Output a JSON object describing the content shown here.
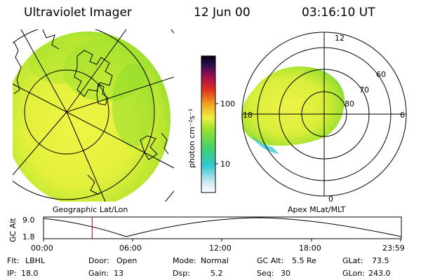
{
  "header": {
    "instrument": "Ultraviolet Imager",
    "date": "12 Jun 00",
    "time": "03:16:10 UT"
  },
  "colorbar": {
    "label": "photon cm⁻²s⁻¹",
    "ticks": [
      "100",
      "10"
    ]
  },
  "geo_panel": {
    "caption": "Geographic Lat/Lon"
  },
  "polar_panel": {
    "caption": "Apex MLat/MLT",
    "mlt_labels": [
      "12",
      "18",
      "6",
      "0"
    ],
    "lat_labels": [
      "60",
      "70",
      "80"
    ]
  },
  "altitude_plot": {
    "ylabel": "GC Alt",
    "yticks": [
      "9.0",
      "1.8"
    ],
    "xticks": [
      "00:00",
      "06:00",
      "12:00",
      "18:00",
      "23:59"
    ],
    "current_time_fraction": 0.136
  },
  "status": {
    "row1": [
      {
        "label": "Flt:",
        "value": "LBHL"
      },
      {
        "label": "Door:",
        "value": "Open"
      },
      {
        "label": "Mode:",
        "value": "Normal"
      },
      {
        "label": "GC Alt:",
        "value": "5.5 Re"
      },
      {
        "label": "GLat:",
        "value": "73.5"
      }
    ],
    "row2": [
      {
        "label": "IP:",
        "value": "18.0"
      },
      {
        "label": "Gain:",
        "value": "13"
      },
      {
        "label": "Dsp:",
        "value": "5.2"
      },
      {
        "label": "Seq:",
        "value": "30"
      },
      {
        "label": "GLon:",
        "value": "243.0"
      }
    ]
  },
  "colors": {
    "aurora_yellow": "#e6f23c",
    "aurora_green": "#8fe02a",
    "aurora_cyan": "#3cc8d8",
    "marker_red": "#cc0000"
  }
}
